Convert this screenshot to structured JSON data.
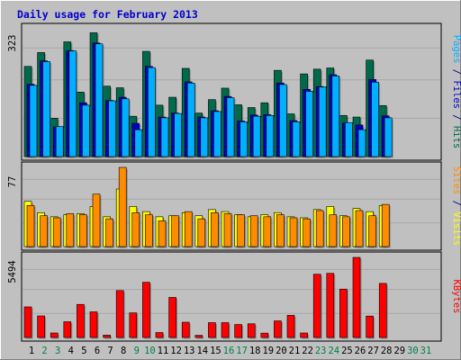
{
  "chart_data": {
    "type": "bar",
    "title": "Daily usage for February 2013",
    "categories": [
      "1",
      "2",
      "3",
      "4",
      "5",
      "6",
      "7",
      "8",
      "9",
      "10",
      "11",
      "12",
      "13",
      "14",
      "15",
      "16",
      "17",
      "18",
      "19",
      "20",
      "21",
      "22",
      "23",
      "24",
      "25",
      "26",
      "27",
      "28",
      "29",
      "30",
      "31"
    ],
    "weekend_days": [
      2,
      3,
      9,
      10,
      16,
      17,
      23,
      24,
      30,
      31
    ],
    "panels": [
      {
        "id": "hits-files-pages",
        "ymax": 323,
        "ymax_label": "323",
        "right_label_parts": [
          {
            "text": "Pages",
            "color": "#00b0ff"
          },
          {
            "text": " / ",
            "color": "#000080"
          },
          {
            "text": "Files",
            "color": "#0000cc"
          },
          {
            "text": " / ",
            "color": "#000080"
          },
          {
            "text": "Hits",
            "color": "#006b4a"
          }
        ],
        "series": [
          {
            "name": "Hits",
            "color": "#006b4a",
            "values": [
              228,
              263,
              97,
              290,
              163,
              313,
              178,
              174,
              102,
              266,
              130,
              150,
              223,
              110,
              144,
              173,
              131,
              124,
              136,
              218,
              108,
              209,
              221,
              224,
              104,
              100,
              244,
              129,
              null,
              null,
              null
            ]
          },
          {
            "name": "Files",
            "color": "#0000cc",
            "values": [
              183,
              242,
              75,
              268,
              136,
              287,
              142,
              150,
              84,
              228,
              100,
              110,
              189,
              100,
              116,
              152,
              90,
              105,
              106,
              186,
              91,
              170,
              177,
              207,
              85,
              80,
              195,
              103,
              null,
              null,
              null
            ]
          },
          {
            "name": "Pages",
            "color": "#00b0ff",
            "values": [
              180,
              240,
              76,
              267,
              130,
              285,
              141,
              146,
              68,
              225,
              98,
              109,
              186,
              98,
              114,
              149,
              88,
              102,
              104,
              182,
              88,
              165,
              176,
              204,
              86,
              68,
              188,
              98,
              null,
              null,
              null
            ]
          }
        ]
      },
      {
        "id": "visits-sites",
        "ymax": 77,
        "ymax_label": "77",
        "right_label_parts": [
          {
            "text": "Sites",
            "color": "#ff8c00"
          },
          {
            "text": " / ",
            "color": "#000080"
          },
          {
            "text": "Visits",
            "color": "#ffff00"
          }
        ],
        "series": [
          {
            "name": "Visits",
            "color": "#ffff00",
            "values": [
              44,
              33,
              29,
              31,
              32,
              39,
              29,
              56,
              39,
              34,
              29,
              30,
              33,
              30,
              36,
              34,
              31,
              29,
              31,
              33,
              29,
              28,
              36,
              39,
              30,
              37,
              34,
              40,
              null,
              null,
              null
            ]
          },
          {
            "name": "Sites",
            "color": "#ff8c00",
            "values": [
              40,
              30,
              28,
              32,
              31,
              51,
              27,
              77,
              33,
              31,
              25,
              30,
              34,
              27,
              33,
              32,
              31,
              30,
              29,
              31,
              28,
              27,
              35,
              31,
              29,
              35,
              30,
              41,
              null,
              null,
              null
            ]
          }
        ]
      },
      {
        "id": "kbytes",
        "ymax": 5494,
        "ymax_label": "5494",
        "right_label_parts": [
          {
            "text": "KBytes",
            "color": "#ff0000"
          }
        ],
        "series": [
          {
            "name": "KBytes",
            "color": "#ff0000",
            "values": [
              2100,
              1480,
              310,
              1080,
              2270,
              1760,
              160,
              3220,
              1690,
              3790,
              340,
              2750,
              1050,
              150,
              1020,
              1020,
              890,
              940,
              300,
              1140,
              1520,
              310,
              4340,
              4400,
              3320,
              5494,
              1470,
              3710,
              null,
              null,
              null
            ]
          }
        ]
      }
    ]
  }
}
